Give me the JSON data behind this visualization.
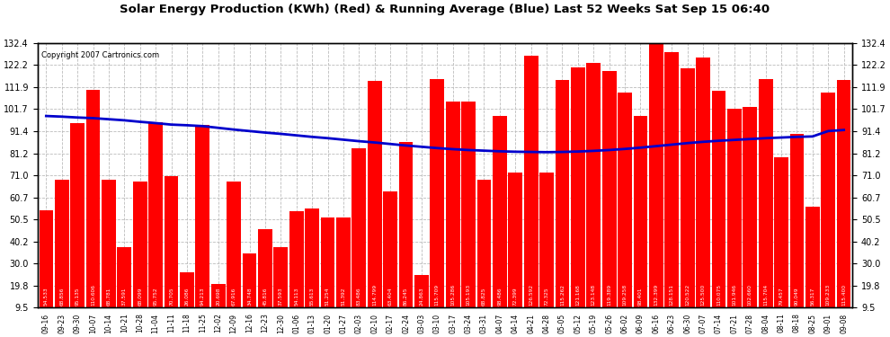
{
  "title": "Solar Energy Production (KWh) (Red) & Running Average (Blue) Last 52 Weeks Sat Sep 15 06:40",
  "copyright": "Copyright 2007 Cartronics.com",
  "bar_color": "#ff0000",
  "line_color": "#0000cc",
  "background_color": "#ffffff",
  "grid_color": "#bbbbbb",
  "ylim": [
    9.5,
    132.4
  ],
  "yticks": [
    9.5,
    19.8,
    30.0,
    40.2,
    50.5,
    60.7,
    71.0,
    81.2,
    91.4,
    101.7,
    111.9,
    122.2,
    132.4
  ],
  "categories": [
    "09-16",
    "09-23",
    "09-30",
    "10-07",
    "10-14",
    "10-21",
    "10-28",
    "11-04",
    "11-11",
    "11-18",
    "11-25",
    "12-02",
    "12-09",
    "12-16",
    "12-23",
    "12-30",
    "01-06",
    "01-13",
    "01-20",
    "01-27",
    "02-03",
    "02-10",
    "02-17",
    "02-24",
    "03-03",
    "03-10",
    "03-17",
    "03-24",
    "03-31",
    "04-07",
    "04-14",
    "04-21",
    "04-28",
    "05-05",
    "05-12",
    "05-19",
    "05-26",
    "06-02",
    "06-09",
    "06-16",
    "06-23",
    "06-30",
    "07-07",
    "07-14",
    "07-21",
    "07-28",
    "08-04",
    "08-11",
    "08-18",
    "08-25",
    "09-01",
    "09-08"
  ],
  "values": [
    54.533,
    68.856,
    95.135,
    110.606,
    68.781,
    37.591,
    68.099,
    95.752,
    70.705,
    26.086,
    94.213,
    20.698,
    67.916,
    34.748,
    45.816,
    37.593,
    54.113,
    55.613,
    51.254,
    51.392,
    83.486,
    114.799,
    63.404,
    86.245,
    24.863,
    115.709,
    105.286,
    105.193,
    68.825,
    98.486,
    72.399,
    126.592,
    72.325,
    115.262,
    121.168,
    123.148,
    119.389,
    109.258,
    98.401,
    132.399,
    128.151,
    120.522,
    125.5,
    110.075,
    101.946,
    102.66,
    115.704,
    79.457,
    90.049,
    56.317,
    109.233,
    115.4
  ],
  "running_avg": [
    98.5,
    98.2,
    97.8,
    97.5,
    97.0,
    96.5,
    95.8,
    95.2,
    94.5,
    94.2,
    93.8,
    93.0,
    92.2,
    91.5,
    90.8,
    90.2,
    89.5,
    88.8,
    88.2,
    87.5,
    86.8,
    86.2,
    85.5,
    84.8,
    84.2,
    83.6,
    83.1,
    82.7,
    82.4,
    82.1,
    81.9,
    81.8,
    81.7,
    81.8,
    82.0,
    82.3,
    82.7,
    83.2,
    83.8,
    84.5,
    85.2,
    85.9,
    86.5,
    87.0,
    87.4,
    87.8,
    88.2,
    88.5,
    88.8,
    89.0,
    91.5,
    92.0
  ]
}
